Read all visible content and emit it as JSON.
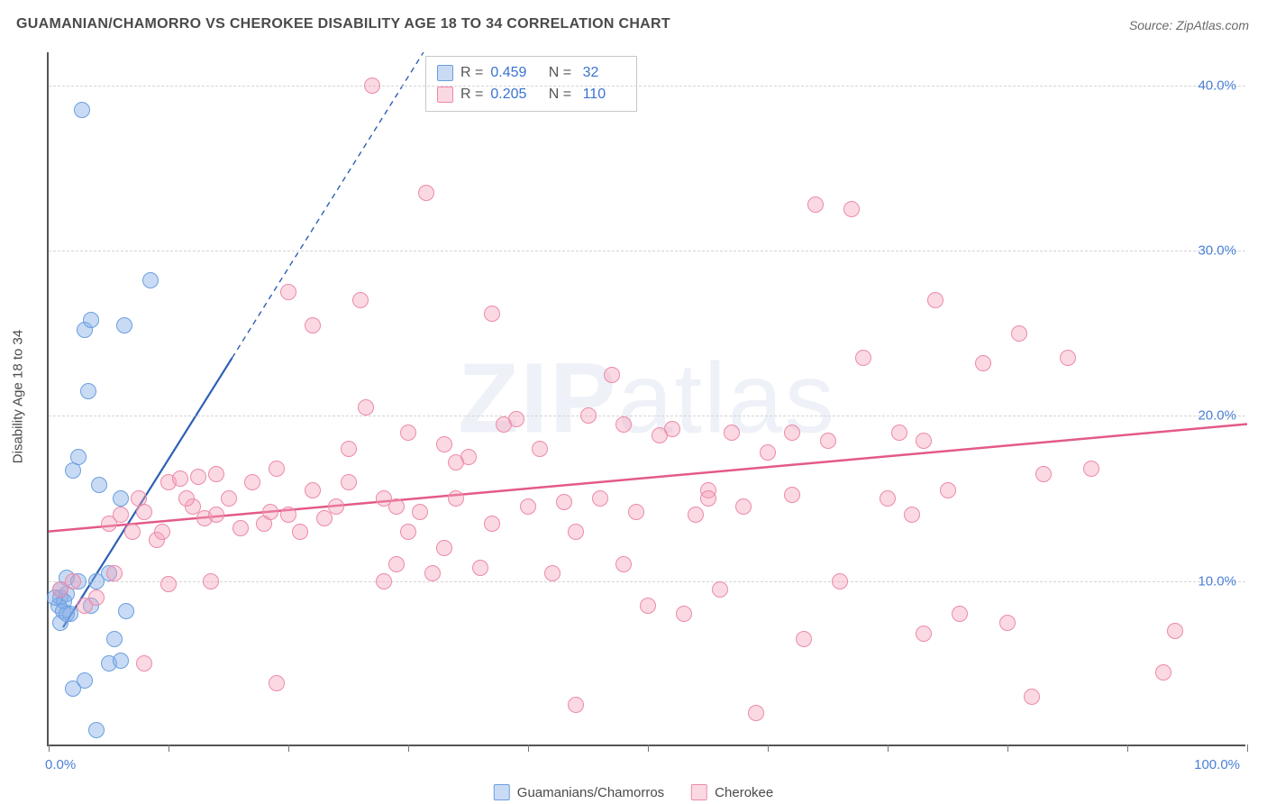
{
  "chart": {
    "type": "scatter",
    "title": "GUAMANIAN/CHAMORRO VS CHEROKEE DISABILITY AGE 18 TO 34 CORRELATION CHART",
    "source_label": "Source: ZipAtlas.com",
    "watermark": {
      "prefix": "ZIP",
      "suffix": "atlas"
    },
    "y_axis_label": "Disability Age 18 to 34",
    "xlim": [
      0,
      100
    ],
    "ylim": [
      0,
      42
    ],
    "x_ticks": [
      0,
      10,
      20,
      30,
      40,
      50,
      60,
      70,
      80,
      90,
      100
    ],
    "x_tick_labels": {
      "0": "0.0%",
      "100": "100.0%"
    },
    "y_ticks": [
      10,
      20,
      30,
      40
    ],
    "y_tick_labels": [
      "10.0%",
      "20.0%",
      "30.0%",
      "40.0%"
    ],
    "marker_radius": 9,
    "marker_stroke_width": 1.5,
    "background_color": "#ffffff",
    "grid_color": "#d5d5d5",
    "axis_color": "#555555",
    "tick_label_color": "#4a7fd8",
    "series": [
      {
        "name": "Guamanians/Chamorros",
        "fill": "rgba(135,175,230,0.45)",
        "stroke": "#6a9fe0",
        "R": "0.459",
        "N": "32",
        "trend": {
          "x1": 1.2,
          "y1": 7.2,
          "x2": 15.3,
          "y2": 23.5,
          "x2_dash": 33,
          "y2_dash": 44,
          "color": "#2e5fb5",
          "width": 2.2
        },
        "points": [
          [
            0.8,
            8.5
          ],
          [
            1.0,
            9.0
          ],
          [
            1.2,
            8.2
          ],
          [
            1.5,
            9.2
          ],
          [
            1.3,
            8.8
          ],
          [
            1.0,
            7.5
          ],
          [
            1.8,
            8.0
          ],
          [
            2.0,
            3.5
          ],
          [
            3.0,
            4.0
          ],
          [
            4.0,
            1.0
          ],
          [
            5.0,
            5.0
          ],
          [
            6.0,
            5.2
          ],
          [
            3.5,
            8.5
          ],
          [
            6.5,
            8.2
          ],
          [
            1.5,
            10.2
          ],
          [
            2.5,
            10.0
          ],
          [
            5.0,
            10.5
          ],
          [
            2.0,
            16.7
          ],
          [
            2.5,
            17.5
          ],
          [
            4.2,
            15.8
          ],
          [
            6.0,
            15.0
          ],
          [
            3.3,
            21.5
          ],
          [
            3.0,
            25.2
          ],
          [
            3.5,
            25.8
          ],
          [
            6.3,
            25.5
          ],
          [
            8.5,
            28.2
          ],
          [
            2.8,
            38.5
          ],
          [
            1.5,
            8.0
          ],
          [
            5.5,
            6.5
          ],
          [
            4.0,
            10.0
          ],
          [
            0.5,
            9.0
          ],
          [
            1.0,
            9.5
          ]
        ]
      },
      {
        "name": "Cherokee",
        "fill": "rgba(245,160,185,0.40)",
        "stroke": "#ec8aa8",
        "R": "0.205",
        "N": "110",
        "trend": {
          "x1": 0,
          "y1": 13.0,
          "x2": 100,
          "y2": 19.5,
          "color": "#e35a87",
          "width": 2.5
        },
        "points": [
          [
            1,
            9.5
          ],
          [
            2,
            10
          ],
          [
            3,
            8.5
          ],
          [
            4,
            9
          ],
          [
            5,
            13.5
          ],
          [
            6,
            14
          ],
          [
            7,
            13
          ],
          [
            8,
            14.2
          ],
          [
            9,
            12.5
          ],
          [
            10,
            9.8
          ],
          [
            10,
            16
          ],
          [
            11,
            16.2
          ],
          [
            12,
            14.5
          ],
          [
            12.5,
            16.3
          ],
          [
            13,
            13.8
          ],
          [
            14,
            14
          ],
          [
            14,
            16.5
          ],
          [
            15,
            15
          ],
          [
            16,
            13.2
          ],
          [
            17,
            16
          ],
          [
            18,
            13.5
          ],
          [
            18.5,
            14.2
          ],
          [
            19,
            16.8
          ],
          [
            20,
            14
          ],
          [
            20,
            27.5
          ],
          [
            21,
            13
          ],
          [
            22,
            15.5
          ],
          [
            22,
            25.5
          ],
          [
            23,
            13.8
          ],
          [
            24,
            14.5
          ],
          [
            25,
            16
          ],
          [
            25,
            18
          ],
          [
            26,
            27
          ],
          [
            26.5,
            20.5
          ],
          [
            27,
            40
          ],
          [
            28,
            15
          ],
          [
            29,
            11
          ],
          [
            29,
            14.5
          ],
          [
            30,
            19
          ],
          [
            30,
            13
          ],
          [
            31,
            14.2
          ],
          [
            31.5,
            33.5
          ],
          [
            32,
            10.5
          ],
          [
            33,
            12
          ],
          [
            33,
            18.3
          ],
          [
            34,
            15
          ],
          [
            35,
            17.5
          ],
          [
            36,
            10.8
          ],
          [
            37,
            13.5
          ],
          [
            37,
            26.2
          ],
          [
            38,
            19.5
          ],
          [
            39,
            19.8
          ],
          [
            40,
            14.5
          ],
          [
            41,
            18
          ],
          [
            42,
            10.5
          ],
          [
            43,
            14.8
          ],
          [
            44,
            2.5
          ],
          [
            45,
            20
          ],
          [
            46,
            15
          ],
          [
            47,
            22.5
          ],
          [
            48,
            11
          ],
          [
            49,
            14.2
          ],
          [
            50,
            8.5
          ],
          [
            51,
            18.8
          ],
          [
            52,
            19.2
          ],
          [
            53,
            8
          ],
          [
            54,
            14
          ],
          [
            55,
            15.5
          ],
          [
            56,
            9.5
          ],
          [
            57,
            19
          ],
          [
            58,
            14.5
          ],
          [
            59,
            2
          ],
          [
            60,
            17.8
          ],
          [
            62,
            15.2
          ],
          [
            63,
            6.5
          ],
          [
            64,
            32.8
          ],
          [
            65,
            18.5
          ],
          [
            66,
            10
          ],
          [
            67,
            32.5
          ],
          [
            68,
            23.5
          ],
          [
            70,
            15
          ],
          [
            71,
            19
          ],
          [
            72,
            14
          ],
          [
            73,
            6.8
          ],
          [
            74,
            27
          ],
          [
            76,
            8
          ],
          [
            78,
            23.2
          ],
          [
            80,
            7.5
          ],
          [
            81,
            25
          ],
          [
            82,
            3
          ],
          [
            83,
            16.5
          ],
          [
            85,
            23.5
          ],
          [
            87,
            16.8
          ],
          [
            93,
            4.5
          ],
          [
            94,
            7
          ],
          [
            5.5,
            10.5
          ],
          [
            7.5,
            15
          ],
          [
            9.5,
            13
          ],
          [
            11.5,
            15
          ],
          [
            13.5,
            10
          ],
          [
            8,
            5
          ],
          [
            19,
            3.8
          ],
          [
            34,
            17.2
          ],
          [
            48,
            19.5
          ],
          [
            55,
            15
          ],
          [
            62,
            19
          ],
          [
            73,
            18.5
          ],
          [
            75,
            15.5
          ],
          [
            44,
            13
          ],
          [
            28,
            10
          ]
        ]
      }
    ],
    "legend_bottom": [
      "Guamanians/Chamorros",
      "Cherokee"
    ]
  }
}
